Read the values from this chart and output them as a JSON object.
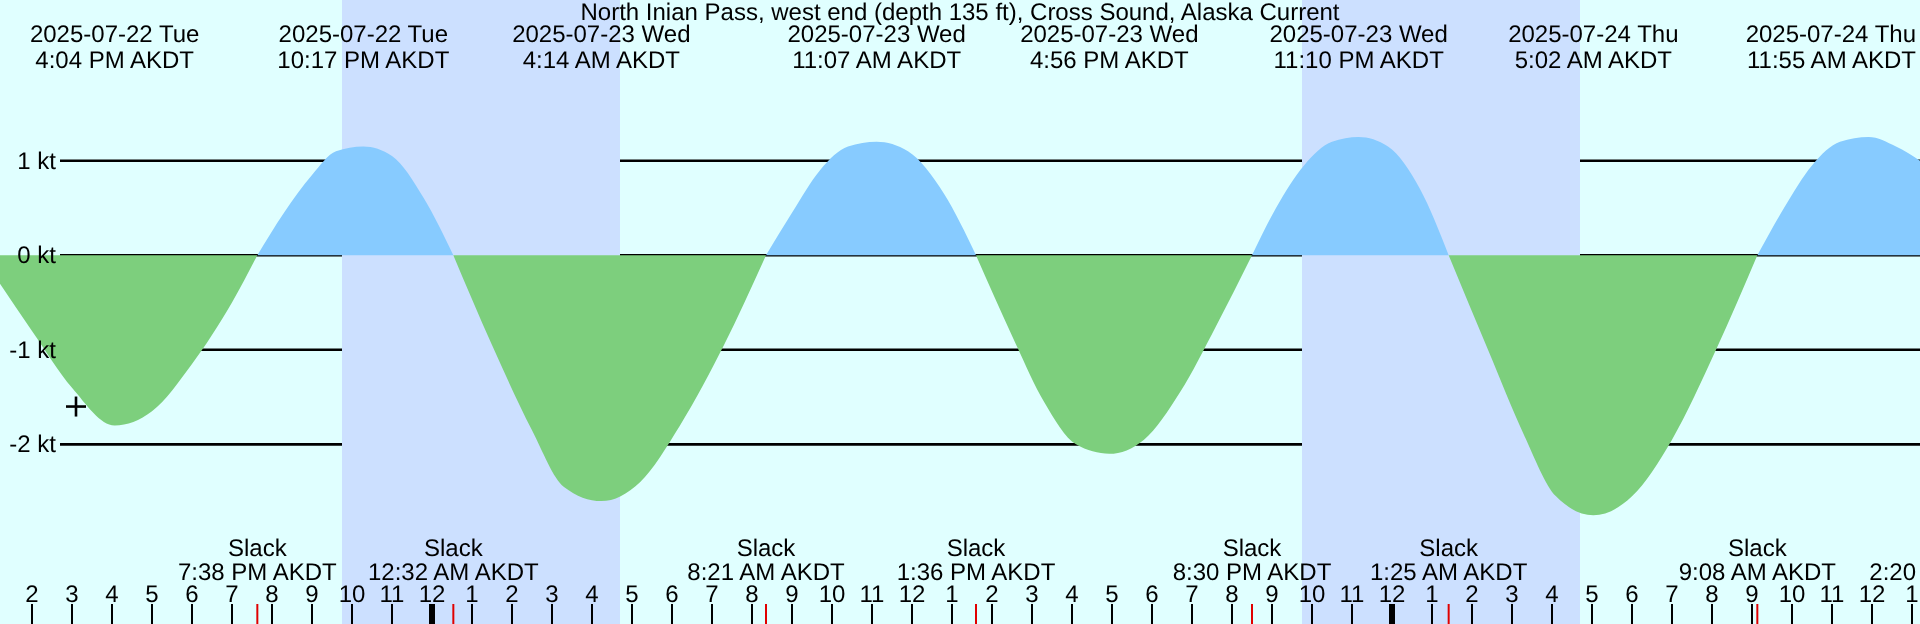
{
  "chart_data": {
    "type": "area",
    "title": "North Inian Pass, west end (depth 135 ft), Cross Sound, Alaska Current",
    "xlim": [
      "2025-07-22T13:12",
      "2025-07-24T13:12"
    ],
    "xticks": [
      {
        "value": "2025-07-22T14:00",
        "label": "2"
      },
      {
        "value": "2025-07-22T15:00",
        "label": "3"
      },
      {
        "value": "2025-07-22T16:00",
        "label": "4"
      },
      {
        "value": "2025-07-22T17:00",
        "label": "5"
      },
      {
        "value": "2025-07-22T18:00",
        "label": "6"
      },
      {
        "value": "2025-07-22T19:00",
        "label": "7"
      },
      {
        "value": "2025-07-22T20:00",
        "label": "8"
      },
      {
        "value": "2025-07-22T21:00",
        "label": "9"
      },
      {
        "value": "2025-07-22T22:00",
        "label": "10"
      },
      {
        "value": "2025-07-22T23:00",
        "label": "11"
      },
      {
        "value": "2025-07-23T00:00",
        "label": "12"
      },
      {
        "value": "2025-07-23T01:00",
        "label": "1"
      },
      {
        "value": "2025-07-23T02:00",
        "label": "2"
      },
      {
        "value": "2025-07-23T03:00",
        "label": "3"
      },
      {
        "value": "2025-07-23T04:00",
        "label": "4"
      },
      {
        "value": "2025-07-23T05:00",
        "label": "5"
      },
      {
        "value": "2025-07-23T06:00",
        "label": "6"
      },
      {
        "value": "2025-07-23T07:00",
        "label": "7"
      },
      {
        "value": "2025-07-23T08:00",
        "label": "8"
      },
      {
        "value": "2025-07-23T09:00",
        "label": "9"
      },
      {
        "value": "2025-07-23T10:00",
        "label": "10"
      },
      {
        "value": "2025-07-23T11:00",
        "label": "11"
      },
      {
        "value": "2025-07-23T12:00",
        "label": "12"
      },
      {
        "value": "2025-07-23T13:00",
        "label": "1"
      },
      {
        "value": "2025-07-23T14:00",
        "label": "2"
      },
      {
        "value": "2025-07-23T15:00",
        "label": "3"
      },
      {
        "value": "2025-07-23T16:00",
        "label": "4"
      },
      {
        "value": "2025-07-23T17:00",
        "label": "5"
      },
      {
        "value": "2025-07-23T18:00",
        "label": "6"
      },
      {
        "value": "2025-07-23T19:00",
        "label": "7"
      },
      {
        "value": "2025-07-23T20:00",
        "label": "8"
      },
      {
        "value": "2025-07-23T21:00",
        "label": "9"
      },
      {
        "value": "2025-07-23T22:00",
        "label": "10"
      },
      {
        "value": "2025-07-23T23:00",
        "label": "11"
      },
      {
        "value": "2025-07-24T00:00",
        "label": "12"
      },
      {
        "value": "2025-07-24T01:00",
        "label": "1"
      },
      {
        "value": "2025-07-24T02:00",
        "label": "2"
      },
      {
        "value": "2025-07-24T03:00",
        "label": "3"
      },
      {
        "value": "2025-07-24T04:00",
        "label": "4"
      },
      {
        "value": "2025-07-24T05:00",
        "label": "5"
      },
      {
        "value": "2025-07-24T06:00",
        "label": "6"
      },
      {
        "value": "2025-07-24T07:00",
        "label": "7"
      },
      {
        "value": "2025-07-24T08:00",
        "label": "8"
      },
      {
        "value": "2025-07-24T09:00",
        "label": "9"
      },
      {
        "value": "2025-07-24T10:00",
        "label": "10"
      },
      {
        "value": "2025-07-24T11:00",
        "label": "11"
      },
      {
        "value": "2025-07-24T12:00",
        "label": "12"
      },
      {
        "value": "2025-07-24T13:00",
        "label": "1"
      }
    ],
    "ylim": [
      -3.9,
      2.7
    ],
    "yticks": [
      {
        "value": -2,
        "label": "-2 kt"
      },
      {
        "value": -1,
        "label": "-1 kt"
      },
      {
        "value": 0,
        "label": "0 kt"
      },
      {
        "value": 1,
        "label": "1 kt"
      }
    ],
    "grid": "y",
    "series": [
      {
        "color": "#87cbff",
        "x": [
          "2025-07-22T19:38",
          "2025-07-22T20:18",
          "2025-07-22T21:00",
          "2025-07-22T21:36",
          "2025-07-22T22:17",
          "2025-07-22T23:00",
          "2025-07-22T23:48",
          "2025-07-23T00:32",
          "2025-07-23T04:14",
          "2025-07-23T08:21",
          "2025-07-23T09:00",
          "2025-07-23T09:42",
          "2025-07-23T10:24",
          "2025-07-23T11:07",
          "2025-07-23T11:54",
          "2025-07-23T12:48",
          "2025-07-23T13:36",
          "2025-07-23T16:56",
          "2025-07-23T20:30",
          "2025-07-23T21:06",
          "2025-07-23T21:48",
          "2025-07-23T22:30",
          "2025-07-23T23:10",
          "2025-07-23T23:54",
          "2025-07-24T00:42",
          "2025-07-24T01:25",
          "2025-07-24T05:02",
          "2025-07-24T09:08",
          "2025-07-24T09:48",
          "2025-07-24T10:30",
          "2025-07-24T11:12",
          "2025-07-24T11:55",
          "2025-07-24T12:36",
          "2025-07-24T13:12"
        ],
        "values": [
          0,
          0.45,
          0.85,
          1.1,
          1.15,
          1.05,
          0.6,
          0,
          null,
          0,
          0.45,
          0.9,
          1.15,
          1.2,
          1.1,
          0.65,
          0,
          null,
          0,
          0.5,
          0.95,
          1.2,
          1.25,
          1.15,
          0.7,
          0,
          null,
          0,
          0.5,
          0.95,
          1.2,
          1.25,
          1.15,
          1.0
        ]
      },
      {
        "color": "#7dcf7d",
        "x": [
          "2025-07-22T13:12",
          "2025-07-22T14:00",
          "2025-07-22T15:00",
          "2025-07-22T16:04",
          "2025-07-22T17:00",
          "2025-07-22T18:00",
          "2025-07-22T19:00",
          "2025-07-22T19:38",
          "2025-07-22T22:17",
          "2025-07-23T00:32",
          "2025-07-23T01:30",
          "2025-07-23T02:30",
          "2025-07-23T03:18",
          "2025-07-23T04:14",
          "2025-07-23T05:12",
          "2025-07-23T06:12",
          "2025-07-23T07:18",
          "2025-07-23T08:21",
          "2025-07-23T11:07",
          "2025-07-23T13:36",
          "2025-07-23T14:30",
          "2025-07-23T15:18",
          "2025-07-23T16:06",
          "2025-07-23T16:56",
          "2025-07-23T17:48",
          "2025-07-23T18:42",
          "2025-07-23T19:36",
          "2025-07-23T20:30",
          "2025-07-23T23:10",
          "2025-07-24T01:25",
          "2025-07-24T02:24",
          "2025-07-24T03:18",
          "2025-07-24T04:06",
          "2025-07-24T05:02",
          "2025-07-24T06:00",
          "2025-07-24T07:00",
          "2025-07-24T08:06",
          "2025-07-24T09:08"
        ],
        "values": [
          -0.3,
          -0.8,
          -1.4,
          -1.8,
          -1.65,
          -1.15,
          -0.5,
          0,
          null,
          0,
          -0.95,
          -1.85,
          -2.45,
          -2.6,
          -2.4,
          -1.8,
          -0.95,
          0,
          null,
          0,
          -0.85,
          -1.55,
          -2.0,
          -2.1,
          -1.95,
          -1.45,
          -0.75,
          0,
          null,
          0,
          -1.0,
          -1.9,
          -2.55,
          -2.75,
          -2.55,
          -1.95,
          -1.0,
          0
        ]
      },
      {
        "type": "scatter",
        "color": "#000000",
        "marker": "cross",
        "x": [
          "2025-07-22T15:06"
        ],
        "values": [
          -1.6
        ]
      }
    ],
    "bands": [
      {
        "axis": "x",
        "from": "2025-07-22T21:45",
        "to": "2025-07-23T04:42",
        "color": "#cce0ff"
      },
      {
        "axis": "x",
        "from": "2025-07-23T21:45",
        "to": "2025-07-24T04:42",
        "color": "#cce0ff"
      }
    ],
    "annotations": [
      "2025-07-22 Tue\n4:04 PM AKDT",
      "2025-07-22 Tue\n10:17 PM AKDT",
      "2025-07-23 Wed\n4:14 AM AKDT",
      "2025-07-23 Wed\n11:07 AM AKDT",
      "2025-07-23 Wed\n4:56 PM AKDT",
      "2025-07-23 Wed\n11:10 PM AKDT",
      "2025-07-24 Thu\n5:02 AM AKDT",
      "2025-07-24 Thu\n11:55 AM AKDT",
      "Slack\n7:38 PM AKDT",
      "Slack\n12:32 AM AKDT",
      "Slack\n8:21 AM AKDT",
      "Slack\n1:36 PM AKDT",
      "Slack\n8:30 PM AKDT",
      "Slack\n1:25 AM AKDT",
      "Slack\n9:08 AM AKDT",
      "2:20"
    ]
  }
}
